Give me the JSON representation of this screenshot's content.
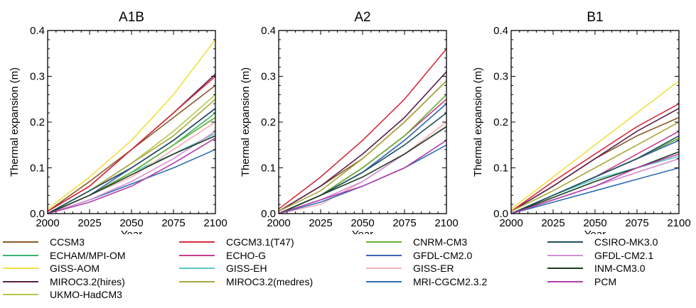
{
  "chart_data": [
    {
      "type": "line",
      "title": "A1B",
      "xlabel": "Year",
      "ylabel": "Thermal expansion (m)",
      "xlim": [
        2000,
        2100
      ],
      "ylim": [
        0,
        0.4
      ],
      "xticks": [
        "2000",
        "2025",
        "2050",
        "2075",
        "2100"
      ],
      "yticks": [
        "0.0",
        "0.1",
        "0.2",
        "0.3",
        "0.4"
      ],
      "grid": false,
      "x": [
        2000,
        2025,
        2050,
        2075,
        2100
      ],
      "series": [
        {
          "name": "CCSM3",
          "values": [
            0.005,
            0.07,
            0.14,
            0.21,
            0.28
          ]
        },
        {
          "name": "ECHAM/MPI-OM",
          "values": [
            0.0,
            0.04,
            0.09,
            0.15,
            0.22
          ]
        },
        {
          "name": "GISS-AOM",
          "values": [
            0.01,
            0.08,
            0.16,
            0.26,
            0.38
          ]
        },
        {
          "name": "MIROC3.2(hires)",
          "values": [
            0.005,
            0.06,
            0.14,
            0.22,
            0.305
          ]
        },
        {
          "name": "UKMO-HadCM3",
          "values": [
            0.0,
            0.05,
            0.11,
            0.18,
            0.26
          ]
        },
        {
          "name": "CGCM3.1(T47)",
          "values": [
            0.005,
            0.06,
            0.14,
            0.22,
            0.3
          ]
        },
        {
          "name": "ECHO-G",
          "values": [
            0.0,
            0.05,
            0.1,
            0.16,
            0.23
          ]
        },
        {
          "name": "GISS-EH",
          "values": [
            0.0,
            0.04,
            0.09,
            0.13,
            0.175
          ]
        },
        {
          "name": "MIROC3.2(medres)",
          "values": [
            0.0,
            0.05,
            0.11,
            0.17,
            0.25
          ]
        },
        {
          "name": "CNRM-CM3",
          "values": [
            0.0,
            0.04,
            0.09,
            0.15,
            0.21
          ]
        },
        {
          "name": "GFDL-CM2.0",
          "values": [
            0.0,
            0.04,
            0.1,
            0.16,
            0.23
          ]
        },
        {
          "name": "GISS-ER",
          "values": [
            0.0,
            0.04,
            0.08,
            0.14,
            0.2
          ]
        },
        {
          "name": "MRI-CGCM2.3.2",
          "values": [
            0.0,
            0.03,
            0.065,
            0.1,
            0.14
          ]
        },
        {
          "name": "CSIRO-MK3.0",
          "values": [
            0.0,
            0.05,
            0.1,
            0.16,
            0.23
          ]
        },
        {
          "name": "GFDL-CM2.1",
          "values": [
            0.0,
            0.03,
            0.07,
            0.12,
            0.18
          ]
        },
        {
          "name": "INM-CM3.0",
          "values": [
            0.0,
            0.04,
            0.085,
            0.13,
            0.17
          ]
        },
        {
          "name": "PCM",
          "values": [
            0.0,
            0.025,
            0.06,
            0.11,
            0.165
          ]
        }
      ]
    },
    {
      "type": "line",
      "title": "A2",
      "xlabel": "Year",
      "ylabel": "Thermal expansion (m)",
      "xlim": [
        2000,
        2100
      ],
      "ylim": [
        0,
        0.4
      ],
      "xticks": [
        "2000",
        "2025",
        "2050",
        "2075",
        "2100"
      ],
      "yticks": [
        "0.0",
        "0.1",
        "0.2",
        "0.3",
        "0.4"
      ],
      "grid": false,
      "x": [
        2000,
        2025,
        2050,
        2075,
        2100
      ],
      "series": [
        {
          "name": "CCSM3",
          "values": [
            0.005,
            0.06,
            0.12,
            0.2,
            0.29
          ]
        },
        {
          "name": "ECHAM/MPI-OM",
          "values": [
            0.0,
            0.04,
            0.09,
            0.16,
            0.24
          ]
        },
        {
          "name": "MIROC3.2(hires)",
          "values": [
            0.005,
            0.06,
            0.13,
            0.21,
            0.31
          ]
        },
        {
          "name": "UKMO-HadCM3",
          "values": [
            0.0,
            0.04,
            0.1,
            0.17,
            0.25
          ]
        },
        {
          "name": "CGCM3.1(T47)",
          "values": [
            0.01,
            0.08,
            0.16,
            0.25,
            0.36
          ]
        },
        {
          "name": "ECHO-G",
          "values": [
            0.0,
            0.04,
            0.1,
            0.17,
            0.25
          ]
        },
        {
          "name": "MIROC3.2(medres)",
          "values": [
            0.005,
            0.05,
            0.12,
            0.2,
            0.29
          ]
        },
        {
          "name": "CNRM-CM3",
          "values": [
            0.0,
            0.04,
            0.1,
            0.17,
            0.26
          ]
        },
        {
          "name": "GFDL-CM2.0",
          "values": [
            0.0,
            0.04,
            0.09,
            0.16,
            0.24
          ]
        },
        {
          "name": "GISS-ER",
          "values": [
            0.0,
            0.02,
            0.07,
            0.13,
            0.2
          ]
        },
        {
          "name": "MRI-CGCM2.3.2",
          "values": [
            0.0,
            0.025,
            0.06,
            0.1,
            0.15
          ]
        },
        {
          "name": "CSIRO-MK3.0",
          "values": [
            0.0,
            0.04,
            0.09,
            0.15,
            0.22
          ]
        },
        {
          "name": "GFDL-CM2.1",
          "values": [
            0.0,
            0.03,
            0.07,
            0.13,
            0.19
          ]
        },
        {
          "name": "INM-CM3.0",
          "values": [
            0.0,
            0.04,
            0.08,
            0.13,
            0.19
          ]
        },
        {
          "name": "PCM",
          "values": [
            0.0,
            0.03,
            0.06,
            0.1,
            0.16
          ]
        }
      ]
    },
    {
      "type": "line",
      "title": "B1",
      "xlabel": "Year",
      "ylabel": "Thermal expansion (m)",
      "xlim": [
        2000,
        2100
      ],
      "ylim": [
        0,
        0.4
      ],
      "xticks": [
        "2000",
        "2025",
        "2050",
        "2075",
        "2100"
      ],
      "yticks": [
        "0.0",
        "0.1",
        "0.2",
        "0.3",
        "0.4"
      ],
      "grid": false,
      "x": [
        2000,
        2025,
        2050,
        2075,
        2100
      ],
      "series": [
        {
          "name": "CCSM3",
          "values": [
            0.005,
            0.06,
            0.12,
            0.17,
            0.21
          ]
        },
        {
          "name": "ECHAM/MPI-OM",
          "values": [
            0.0,
            0.04,
            0.08,
            0.12,
            0.16
          ]
        },
        {
          "name": "GISS-AOM",
          "values": [
            0.01,
            0.08,
            0.15,
            0.22,
            0.29
          ]
        },
        {
          "name": "MIROC3.2(hires)",
          "values": [
            0.005,
            0.06,
            0.12,
            0.18,
            0.23
          ]
        },
        {
          "name": "UKMO-HadCM3",
          "values": [
            0.0,
            0.04,
            0.08,
            0.12,
            0.16
          ]
        },
        {
          "name": "CGCM3.1(T47)",
          "values": [
            0.005,
            0.07,
            0.13,
            0.19,
            0.24
          ]
        },
        {
          "name": "ECHO-G",
          "values": [
            0.0,
            0.04,
            0.08,
            0.13,
            0.18
          ]
        },
        {
          "name": "GISS-EH",
          "values": [
            0.0,
            0.04,
            0.075,
            0.1,
            0.125
          ]
        },
        {
          "name": "MIROC3.2(medres)",
          "values": [
            0.005,
            0.05,
            0.1,
            0.15,
            0.2
          ]
        },
        {
          "name": "CNRM-CM3",
          "values": [
            0.0,
            0.04,
            0.08,
            0.12,
            0.165
          ]
        },
        {
          "name": "GFDL-CM2.0",
          "values": [
            0.0,
            0.04,
            0.08,
            0.12,
            0.16
          ]
        },
        {
          "name": "GISS-ER",
          "values": [
            0.0,
            0.03,
            0.06,
            0.09,
            0.12
          ]
        },
        {
          "name": "MRI-CGCM2.3.2",
          "values": [
            0.0,
            0.025,
            0.05,
            0.075,
            0.1
          ]
        },
        {
          "name": "CSIRO-MK3.0",
          "values": [
            0.0,
            0.04,
            0.08,
            0.12,
            0.17
          ]
        },
        {
          "name": "GFDL-CM2.1",
          "values": [
            0.0,
            0.03,
            0.06,
            0.09,
            0.12
          ]
        },
        {
          "name": "INM-CM3.0",
          "values": [
            0.0,
            0.035,
            0.07,
            0.1,
            0.135
          ]
        },
        {
          "name": "PCM",
          "values": [
            0.0,
            0.03,
            0.06,
            0.1,
            0.13
          ]
        }
      ]
    }
  ],
  "legend": {
    "placement": "bottom",
    "items": [
      {
        "label": "CCSM3",
        "color": "#8b5a2b"
      },
      {
        "label": "ECHAM/MPI-OM",
        "color": "#3cb371"
      },
      {
        "label": "GISS-AOM",
        "color": "#f0e040"
      },
      {
        "label": "MIROC3.2(hires)",
        "color": "#5a1f4a"
      },
      {
        "label": "UKMO-HadCM3",
        "color": "#b5c94a"
      },
      {
        "label": "CGCM3.1(T47)",
        "color": "#d62d3b"
      },
      {
        "label": "ECHO-G",
        "color": "#c73e8c"
      },
      {
        "label": "GISS-EH",
        "color": "#5cc8c8"
      },
      {
        "label": "MIROC3.2(medres)",
        "color": "#a8a83c"
      },
      {
        "label": "CNRM-CM3",
        "color": "#66b032"
      },
      {
        "label": "GFDL-CM2.0",
        "color": "#3a63b4"
      },
      {
        "label": "GISS-ER",
        "color": "#f4b0b8"
      },
      {
        "label": "MRI-CGCM2.3.2",
        "color": "#2f6eb0"
      },
      {
        "label": "CSIRO-MK3.0",
        "color": "#1f4e5f"
      },
      {
        "label": "GFDL-CM2.1",
        "color": "#d38fd6"
      },
      {
        "label": "INM-CM3.0",
        "color": "#1d3b1d"
      },
      {
        "label": "PCM",
        "color": "#b03ea8"
      }
    ]
  }
}
